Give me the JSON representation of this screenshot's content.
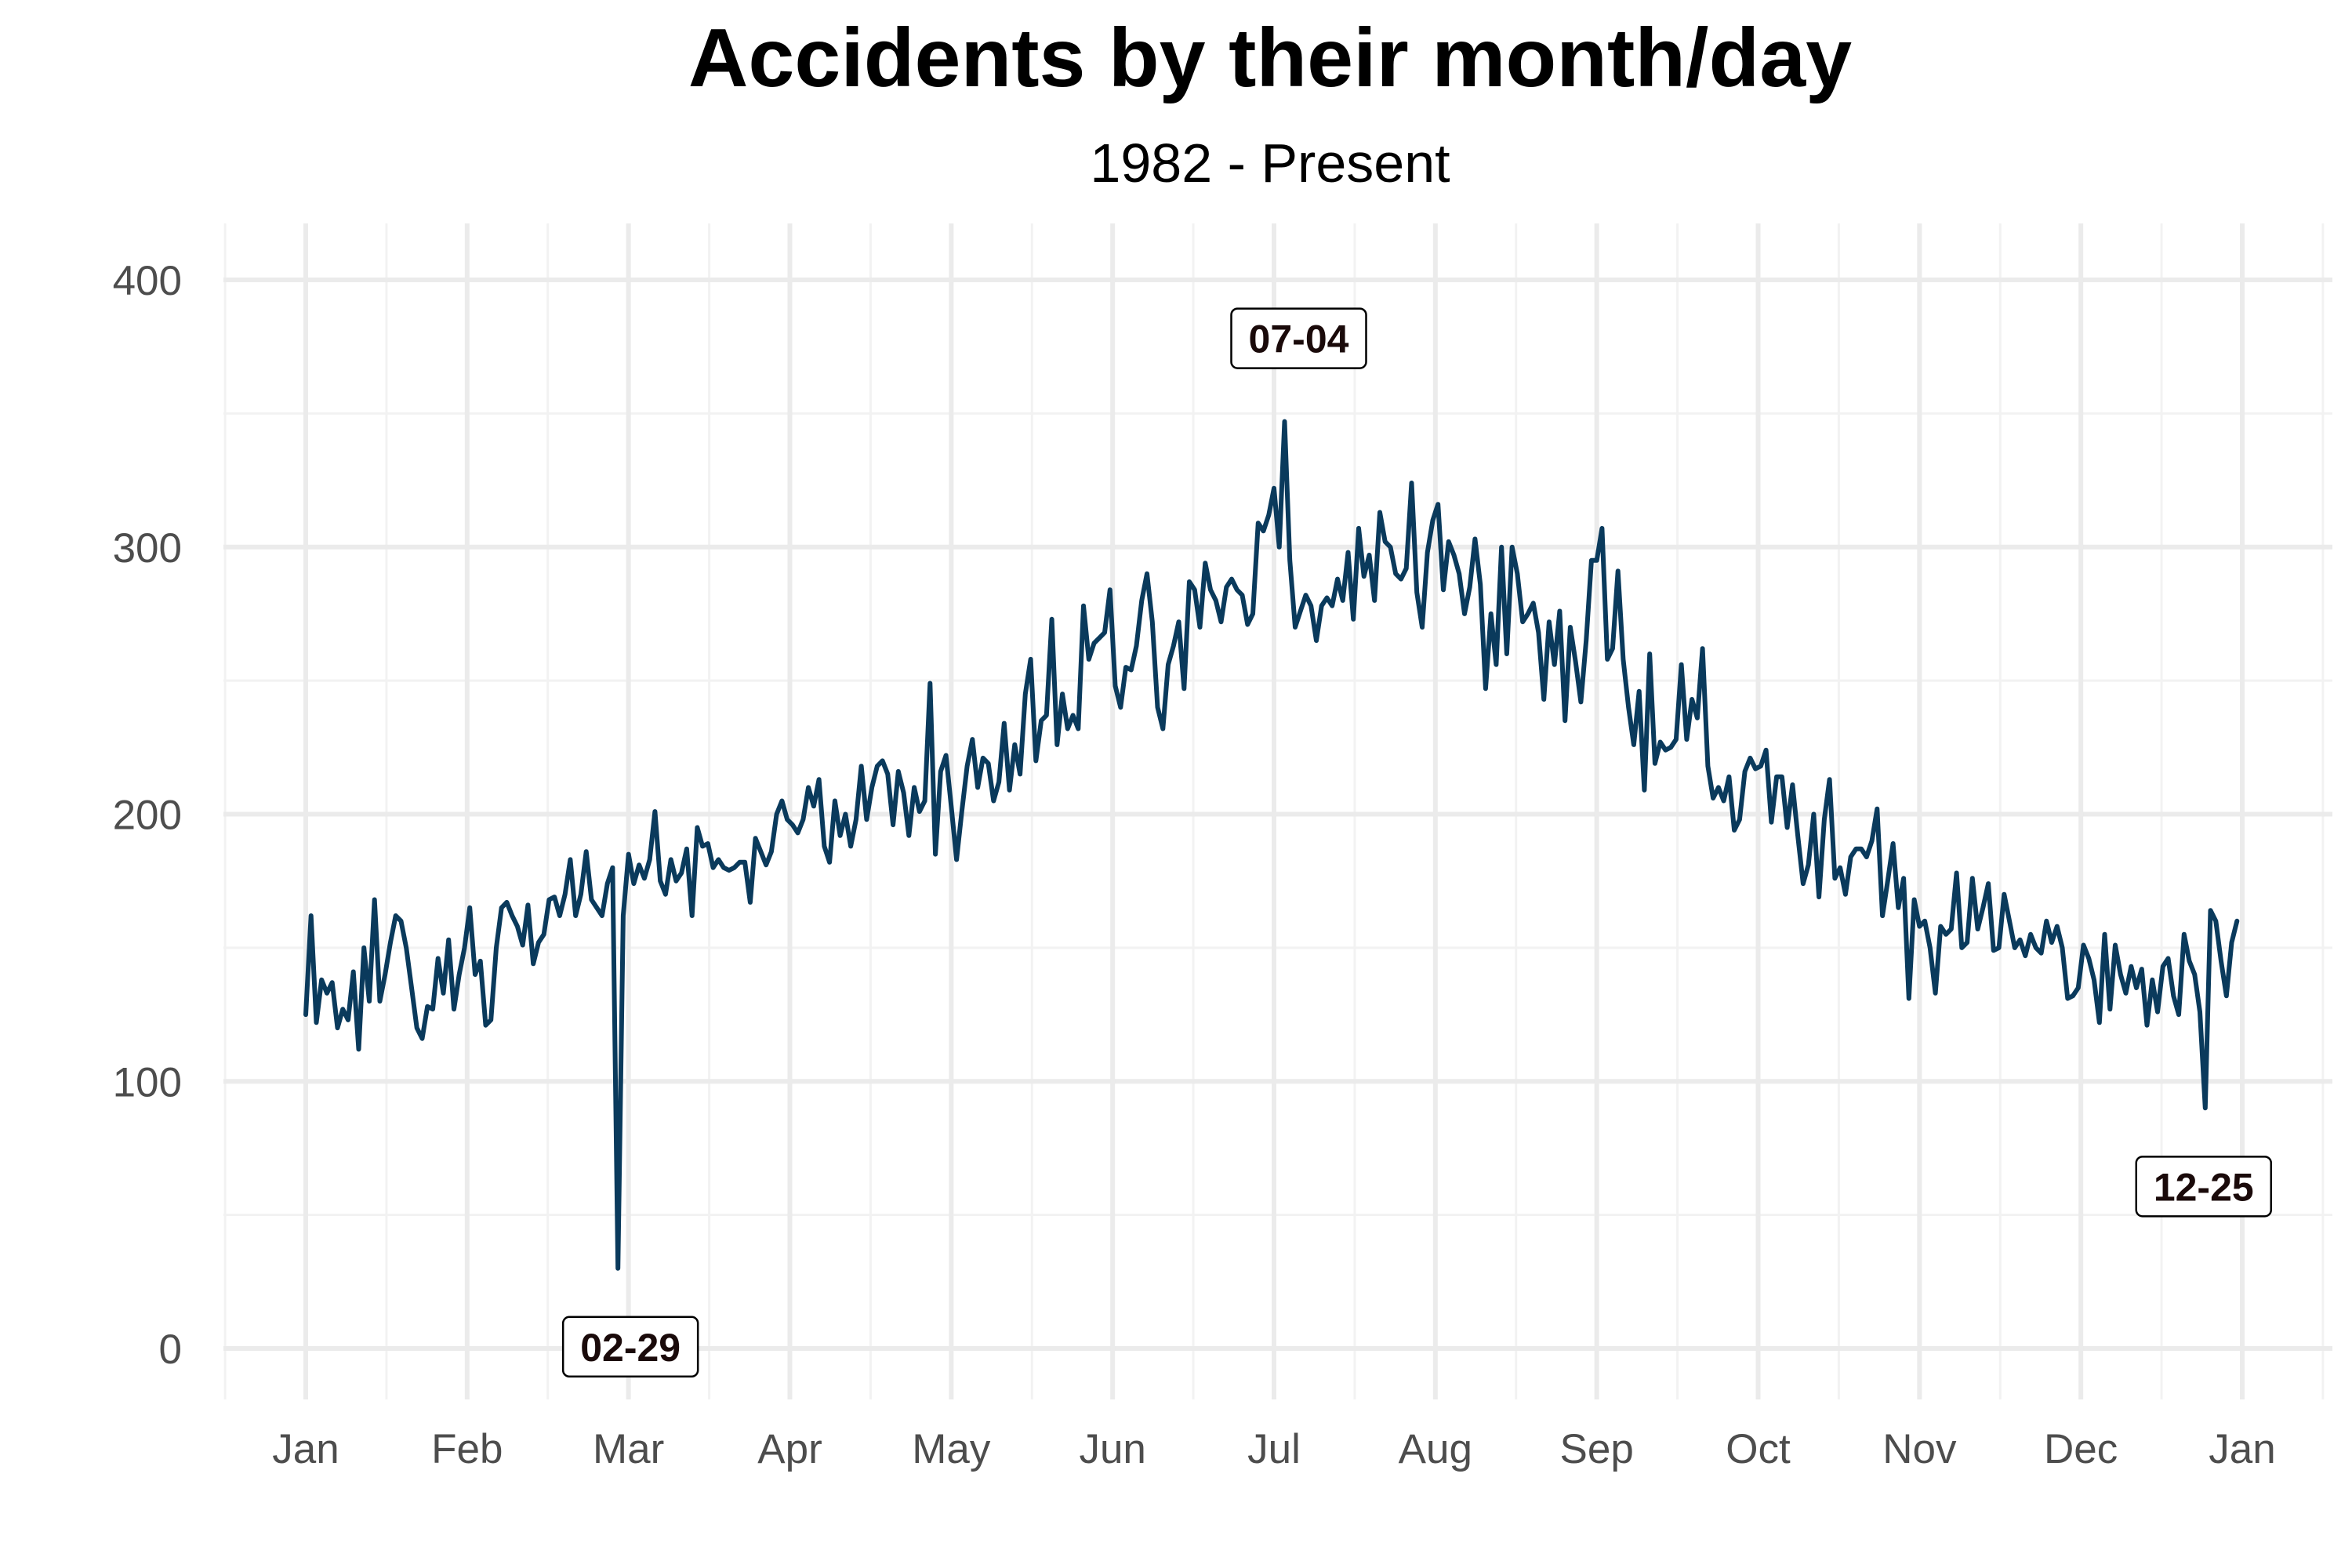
{
  "chart_data": {
    "type": "line",
    "title": "Accidents by their month/day",
    "subtitle": "1982 - Present",
    "xlabel": "",
    "ylabel": "",
    "x_ticks": [
      "Jan",
      "Feb",
      "Mar",
      "Apr",
      "May",
      "Jun",
      "Jul",
      "Aug",
      "Sep",
      "Oct",
      "Nov",
      "Dec",
      "Jan"
    ],
    "y_ticks": [
      0,
      100,
      200,
      300,
      400
    ],
    "ylim": [
      -20,
      420
    ],
    "grid": true,
    "legend": "none",
    "colors": {
      "line": "#0a3a5c",
      "grid": "#ebebeb"
    },
    "series": [
      {
        "values": [
          125,
          162,
          122,
          138,
          133,
          137,
          120,
          127,
          123,
          141,
          112,
          150,
          130,
          168,
          130,
          140,
          152,
          162,
          160,
          150,
          135,
          120,
          116,
          128,
          127,
          146,
          133,
          153,
          127,
          140,
          150,
          165,
          140,
          145,
          121,
          123,
          150,
          165,
          167,
          162,
          158,
          151,
          166,
          144,
          152,
          155,
          168,
          169,
          162,
          170,
          183,
          162,
          170,
          186,
          168,
          165,
          162,
          174,
          180,
          30,
          162,
          185,
          174,
          181,
          176,
          183,
          201,
          175,
          170,
          183,
          175,
          178,
          187,
          162,
          195,
          188,
          189,
          180,
          183,
          180,
          179,
          180,
          182,
          182,
          167,
          191,
          186,
          181,
          186,
          200,
          205,
          198,
          196,
          193,
          198,
          210,
          203,
          213,
          188,
          182,
          205,
          192,
          200,
          188,
          198,
          218,
          198,
          210,
          218,
          220,
          215,
          196,
          216,
          208,
          192,
          210,
          201,
          205,
          249,
          185,
          216,
          222,
          203,
          183,
          201,
          218,
          228,
          210,
          221,
          219,
          205,
          212,
          234,
          209,
          226,
          215,
          245,
          258,
          220,
          235,
          237,
          273,
          226,
          245,
          232,
          237,
          232,
          278,
          258,
          264,
          266,
          268,
          284,
          248,
          240,
          255,
          254,
          263,
          280,
          290,
          272,
          240,
          232,
          256,
          263,
          272,
          247,
          287,
          284,
          270,
          294,
          284,
          280,
          272,
          285,
          288,
          284,
          282,
          271,
          275,
          309,
          306,
          312,
          322,
          300,
          347,
          295,
          270,
          276,
          282,
          278,
          265,
          278,
          281,
          278,
          288,
          280,
          298,
          273,
          307,
          289,
          297,
          280,
          313,
          302,
          300,
          290,
          288,
          292,
          324,
          283,
          270,
          298,
          310,
          316,
          284,
          302,
          297,
          290,
          275,
          285,
          303,
          286,
          247,
          275,
          256,
          300,
          260,
          300,
          290,
          272,
          275,
          279,
          268,
          243,
          272,
          256,
          276,
          235,
          270,
          257,
          242,
          265,
          295,
          295,
          307,
          258,
          262,
          291,
          258,
          240,
          226,
          246,
          209,
          260,
          219,
          227,
          224,
          225,
          228,
          256,
          228,
          243,
          236,
          262,
          218,
          206,
          210,
          205,
          214,
          194,
          198,
          216,
          221,
          217,
          218,
          224,
          197,
          214,
          214,
          195,
          211,
          192,
          174,
          181,
          200,
          169,
          198,
          213,
          176,
          180,
          170,
          184,
          187,
          187,
          184,
          190,
          202,
          162,
          175,
          189,
          165,
          176,
          131,
          168,
          158,
          160,
          150,
          133,
          158,
          155,
          157,
          178,
          150,
          152,
          176,
          157,
          165,
          174,
          149,
          150,
          170,
          160,
          150,
          153,
          147,
          155,
          150,
          148,
          160,
          152,
          158,
          150,
          131,
          132,
          135,
          151,
          146,
          138,
          122,
          155,
          127,
          151,
          140,
          133,
          143,
          135,
          142,
          121,
          138,
          126,
          143,
          146,
          132,
          125,
          155,
          145,
          140,
          126,
          90,
          164,
          160,
          145,
          132,
          152,
          160
        ]
      }
    ],
    "annotations": [
      {
        "label": "07-04",
        "x_day": 185,
        "y": 347
      },
      {
        "label": "02-29",
        "x_day": 59,
        "y": 30
      },
      {
        "label": "12-25",
        "x_day": 359,
        "y": 90
      }
    ]
  }
}
